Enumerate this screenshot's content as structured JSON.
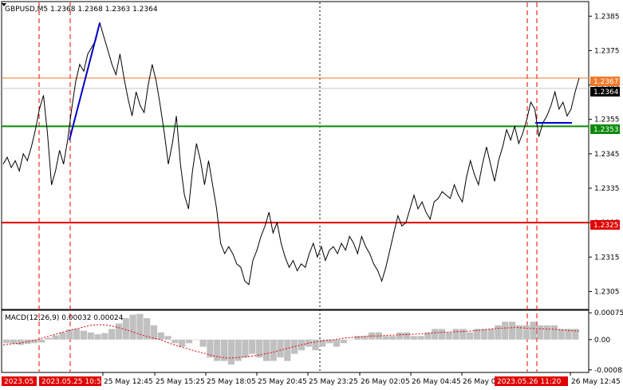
{
  "chart_data": [
    {
      "type": "line",
      "header": "GBPUSD,M5  1.2368 1.2368 1.2363 1.2364",
      "y_ticks": [
        1.2385,
        1.2375,
        1.2365,
        1.2355,
        1.2345,
        1.2335,
        1.2325,
        1.2315,
        1.2305
      ],
      "y_tick_labels": [
        "1.2385",
        "1.2375",
        "1.2365",
        "1.2355",
        "1.2345",
        "1.2335",
        "1.2325",
        "1.2315",
        "1.2305"
      ],
      "ylim": [
        1.23,
        1.2389
      ],
      "x_tick_labels": [
        "25 May 12:45",
        "25 May 15:25",
        "25 May 18:05",
        "25 May 20:45",
        "25 May 23:25",
        "26 May 02:05",
        "26 May 04:45",
        "26 May 07:25",
        "26 May 12:45"
      ],
      "x_tick_labels_highlighted": [
        "2023.05",
        "2023.05.25 10:55",
        "2023.05.26 11:20"
      ],
      "price_path": [
        1.2342,
        1.2344,
        1.2341,
        1.2343,
        1.234,
        1.2345,
        1.2343,
        1.2347,
        1.2352,
        1.2358,
        1.2362,
        1.2351,
        1.2336,
        1.234,
        1.2346,
        1.2342,
        1.2349,
        1.2358,
        1.2366,
        1.2371,
        1.2369,
        1.2374,
        1.2376,
        1.2378,
        1.2383,
        1.2379,
        1.2375,
        1.2371,
        1.2368,
        1.2374,
        1.2367,
        1.2361,
        1.2356,
        1.2363,
        1.2359,
        1.2357,
        1.2365,
        1.2371,
        1.2366,
        1.2359,
        1.2351,
        1.2342,
        1.2348,
        1.2356,
        1.2342,
        1.2333,
        1.2329,
        1.234,
        1.2348,
        1.2343,
        1.2336,
        1.2343,
        1.2336,
        1.2329,
        1.2319,
        1.2316,
        1.2318,
        1.2316,
        1.2313,
        1.2312,
        1.2308,
        1.2307,
        1.2314,
        1.2317,
        1.2321,
        1.2324,
        1.2328,
        1.2322,
        1.2325,
        1.2319,
        1.2315,
        1.2312,
        1.2314,
        1.2311,
        1.2313,
        1.2312,
        1.2316,
        1.2319,
        1.2315,
        1.2318,
        1.2314,
        1.2317,
        1.2318,
        1.2316,
        1.2319,
        1.2317,
        1.2321,
        1.2319,
        1.2316,
        1.2321,
        1.2318,
        1.2316,
        1.2313,
        1.2311,
        1.2308,
        1.2312,
        1.2317,
        1.2322,
        1.2327,
        1.2324,
        1.2325,
        1.2329,
        1.2333,
        1.2329,
        1.2331,
        1.2328,
        1.2326,
        1.2331,
        1.2332,
        1.2334,
        1.2333,
        1.2332,
        1.2336,
        1.2333,
        1.2331,
        1.2338,
        1.2343,
        1.2339,
        1.2336,
        1.2342,
        1.2347,
        1.2342,
        1.2337,
        1.2343,
        1.2347,
        1.2352,
        1.2349,
        1.2353,
        1.2348,
        1.2351,
        1.2355,
        1.236,
        1.2358,
        1.235,
        1.2354,
        1.2356,
        1.2359,
        1.2363,
        1.2358,
        1.236,
        1.2356,
        1.2358,
        1.2363,
        1.2367
      ],
      "macd": {
        "title": "MACD(12,26,9) 0.00032 0.00024",
        "y_ticks": [
          0.00075,
          0.0,
          -0.00085
        ],
        "y_tick_labels": [
          "0.00075",
          "0.00",
          "-0.00085"
        ],
        "ylim": [
          -0.0009,
          0.0008
        ],
        "histogram": [
          -0.0001,
          -0.00012,
          -0.00015,
          -0.00012,
          -0.0001,
          -8e-05,
          5e-05,
          0.00012,
          0.0002,
          0.00028,
          0.0003,
          0.00025,
          0.0002,
          0.00015,
          0.00018,
          0.0003,
          0.00045,
          0.0006,
          0.0007,
          0.00072,
          0.0006,
          0.0004,
          0.0002,
          0.0001,
          -0.0001,
          -0.0002,
          -0.0001,
          0.0,
          -0.0002,
          -0.0005,
          -0.0006,
          -0.0006,
          -0.0007,
          -0.0006,
          -0.0005,
          -0.0004,
          -0.0005,
          -0.0006,
          -0.0006,
          -0.0005,
          -0.0006,
          -0.0004,
          -0.0003,
          -0.0002,
          -0.0003,
          -0.0002,
          -0.0001,
          -0.0002,
          -0.0001,
          0.0,
          0.0001,
          0.0001,
          0.0002,
          0.0002,
          0.0001,
          0.0001,
          0.0002,
          0.0002,
          0.0001,
          0.0001,
          0.0002,
          0.0003,
          0.0003,
          0.0002,
          0.0003,
          0.0003,
          0.0002,
          0.0003,
          0.0003,
          0.0003,
          0.0004,
          0.0005,
          0.0005,
          0.0004,
          0.0004,
          0.0005,
          0.0004,
          0.0004,
          0.0004,
          0.0003,
          0.0003,
          0.0003
        ],
        "signal": [
          -0.00015,
          -0.00012,
          -0.0001,
          -5e-05,
          0.0,
          8e-05,
          0.00015,
          0.00022,
          0.00028,
          0.00034,
          0.0004,
          0.00042,
          0.0004,
          0.00035,
          0.00028,
          0.0002,
          0.00012,
          5e-05,
          0.0,
          -0.0001,
          -0.00018,
          -0.00025,
          -0.00032,
          -0.00038,
          -0.00045,
          -0.0005,
          -0.00052,
          -0.0005,
          -0.00048,
          -0.00045,
          -0.0004,
          -0.00035,
          -0.00028,
          -0.00022,
          -0.00016,
          -0.0001,
          -6e-05,
          -2e-05,
          0.0,
          4e-05,
          6e-05,
          8e-05,
          0.0001,
          0.0001,
          0.00012,
          0.00013,
          0.00014,
          0.00015,
          0.00016,
          0.00018,
          0.0002,
          0.00021,
          0.00022,
          0.00023,
          0.00025,
          0.00027,
          0.0003,
          0.00032,
          0.00033,
          0.00034,
          0.00032,
          0.00031,
          0.0003,
          0.00029,
          0.00027,
          0.00025,
          0.00024
        ]
      }
    }
  ],
  "lines": {
    "orange_label": "1.2367",
    "current_label": "1.2364",
    "green_label": "1.2353",
    "red_label": "1.2325"
  },
  "colors": {
    "price": "#000000",
    "orange": "#f07a2a",
    "green": "#0a8a0a",
    "red": "#e00000",
    "blue": "#0000cc",
    "macd_hist": "#c0c0c0",
    "macd_signal": "#e00000"
  }
}
